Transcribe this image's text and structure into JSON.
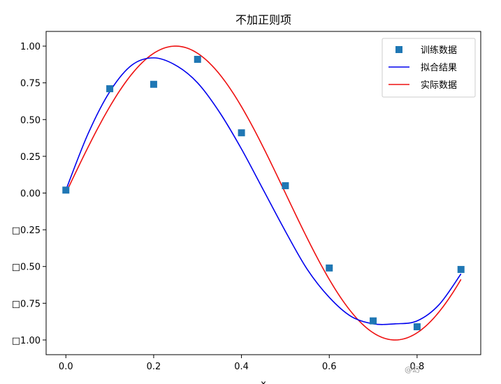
{
  "chart_data": {
    "type": "line",
    "title": "不加正则项",
    "xlabel": "x",
    "ylabel": "",
    "xlim": [
      -0.045,
      0.945
    ],
    "ylim": [
      -1.1,
      1.1
    ],
    "xticks": [
      0.0,
      0.2,
      0.4,
      0.6,
      0.8
    ],
    "xtick_labels": [
      "0.0",
      "0.2",
      "0.4",
      "0.6",
      "0.8"
    ],
    "yticks": [
      1.0,
      0.75,
      0.5,
      0.25,
      0.0,
      -0.25,
      -0.5,
      -0.75,
      -1.0
    ],
    "ytick_labels": [
      "1.00",
      "0.75",
      "0.50",
      "0.25",
      "0.00",
      "□0.25",
      "□0.50",
      "□0.75",
      "□1.00"
    ],
    "grid": false,
    "legend_position": "top-right",
    "series": [
      {
        "name": "训练数据",
        "kind": "scatter",
        "marker": "square",
        "color": "#1f77b4",
        "x": [
          0.0,
          0.1,
          0.2,
          0.3,
          0.4,
          0.5,
          0.6,
          0.7,
          0.8,
          0.9
        ],
        "y": [
          0.02,
          0.71,
          0.74,
          0.91,
          0.41,
          0.05,
          -0.51,
          -0.87,
          -0.91,
          -0.52
        ]
      },
      {
        "name": "拟合结果",
        "kind": "line",
        "color": "#0000ee",
        "x": [
          0.0,
          0.05,
          0.1,
          0.15,
          0.2,
          0.25,
          0.3,
          0.35,
          0.4,
          0.45,
          0.5,
          0.55,
          0.6,
          0.65,
          0.7,
          0.75,
          0.8,
          0.85,
          0.9
        ],
        "y": [
          0.02,
          0.4,
          0.69,
          0.87,
          0.92,
          0.87,
          0.75,
          0.55,
          0.3,
          0.02,
          -0.26,
          -0.52,
          -0.71,
          -0.84,
          -0.89,
          -0.89,
          -0.87,
          -0.76,
          -0.55
        ]
      },
      {
        "name": "实际数据",
        "kind": "line",
        "color": "#ee1111",
        "function": "sin(2*pi*x)",
        "x_range": [
          0.0,
          0.9
        ]
      }
    ],
    "watermark": "@幻"
  }
}
